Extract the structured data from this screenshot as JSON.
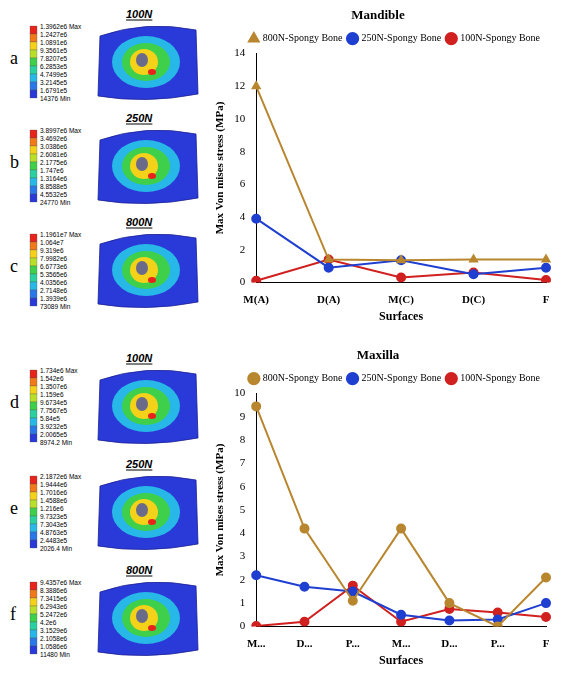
{
  "panels": [
    {
      "letter": "a",
      "force": "100N",
      "colorbar_labels": [
        "1.3962e6 Max",
        "1.2427e6",
        "1.0891e6",
        "9.3561e5",
        "7.8207e5",
        "6.2853e5",
        "4.7499e5",
        "3.2145e5",
        "1.6791e5",
        "14376 Min"
      ]
    },
    {
      "letter": "b",
      "force": "250N",
      "colorbar_labels": [
        "3.8997e6 Max",
        "3.4692e6",
        "3.0386e6",
        "2.6081e6",
        "2.1775e6",
        "1.747e6",
        "1.3164e6",
        "8.8588e5",
        "4.5532e5",
        "24770 Min"
      ]
    },
    {
      "letter": "c",
      "force": "800N",
      "colorbar_labels": [
        "1.1961e7 Max",
        "1.064e7",
        "9.319e6",
        "7.9982e6",
        "6.6773e6",
        "5.3565e6",
        "4.0356e6",
        "2.7148e6",
        "1.3939e6",
        "73089 Min"
      ]
    },
    {
      "letter": "d",
      "force": "100N",
      "colorbar_labels": [
        "1.734e6 Max",
        "1.542e6",
        "1.3507e6",
        "1.159e6",
        "9.6734e5",
        "7.7567e5",
        "5.84e5",
        "3.9232e5",
        "2.0065e5",
        "8974.2 Min"
      ]
    },
    {
      "letter": "e",
      "force": "250N",
      "colorbar_labels": [
        "2.1872e6 Max",
        "1.9444e6",
        "1.7016e6",
        "1.4588e6",
        "1.216e6",
        "9.7323e5",
        "7.3043e5",
        "4.8763e5",
        "2.4483e5",
        "2026.4 Min"
      ]
    },
    {
      "letter": "f",
      "force": "800N",
      "colorbar_labels": [
        "9.4357e6 Max",
        "8.3886e6",
        "7.3415e6",
        "6.2943e6",
        "5.2472e6",
        "4.2e6",
        "3.1529e6",
        "2.1058e6",
        "1.0586e6",
        "11480 Min"
      ]
    }
  ],
  "chart_data": [
    {
      "type": "line",
      "title": "Mandible",
      "x_label": "Surfaces",
      "y_label": "Max Von mises stress (MPa)",
      "categories": [
        "M(A)",
        "D(A)",
        "M(C)",
        "D(C)",
        "F"
      ],
      "series": [
        {
          "name": "800N-Spongy Bone",
          "color": "#b8862e",
          "marker": "triangle",
          "values": [
            12,
            1.4,
            1.35,
            1.4,
            1.4
          ]
        },
        {
          "name": "250N-Spongy Bone",
          "color": "#1f3fd0",
          "marker": "circle",
          "values": [
            3.9,
            0.9,
            1.35,
            0.5,
            0.9
          ]
        },
        {
          "name": "100N-Spongy Bone",
          "color": "#d02020",
          "marker": "circle",
          "values": [
            0.1,
            1.4,
            0.3,
            0.6,
            0.15
          ]
        }
      ],
      "ylim": [
        0,
        14
      ],
      "yticks": [
        0,
        2,
        4,
        6,
        8,
        10,
        12,
        14
      ],
      "grid": false,
      "legend": "top"
    },
    {
      "type": "line",
      "title": "Maxilla",
      "x_label": "Surfaces",
      "y_label": "Max Von mises stress (MPa)",
      "categories": [
        "M...",
        "D...",
        "P...",
        "M...",
        "D...",
        "P...",
        "F"
      ],
      "series": [
        {
          "name": "800N-Spongy Bone",
          "color": "#b8862e",
          "marker": "circle",
          "values": [
            9.45,
            4.2,
            1.1,
            4.2,
            1.0,
            0.0,
            2.1
          ]
        },
        {
          "name": "250N-Spongy Bone",
          "color": "#1f3fd0",
          "marker": "circle",
          "values": [
            2.2,
            1.7,
            1.5,
            0.5,
            0.25,
            0.3,
            1.0
          ]
        },
        {
          "name": "100N-Spongy Bone",
          "color": "#d02020",
          "marker": "circle",
          "values": [
            0.02,
            0.2,
            1.75,
            0.2,
            0.75,
            0.6,
            0.4
          ]
        }
      ],
      "ylim": [
        0,
        10
      ],
      "yticks": [
        0,
        1,
        2,
        3,
        4,
        5,
        6,
        7,
        8,
        9,
        10
      ],
      "grid": false,
      "legend": "top"
    }
  ]
}
